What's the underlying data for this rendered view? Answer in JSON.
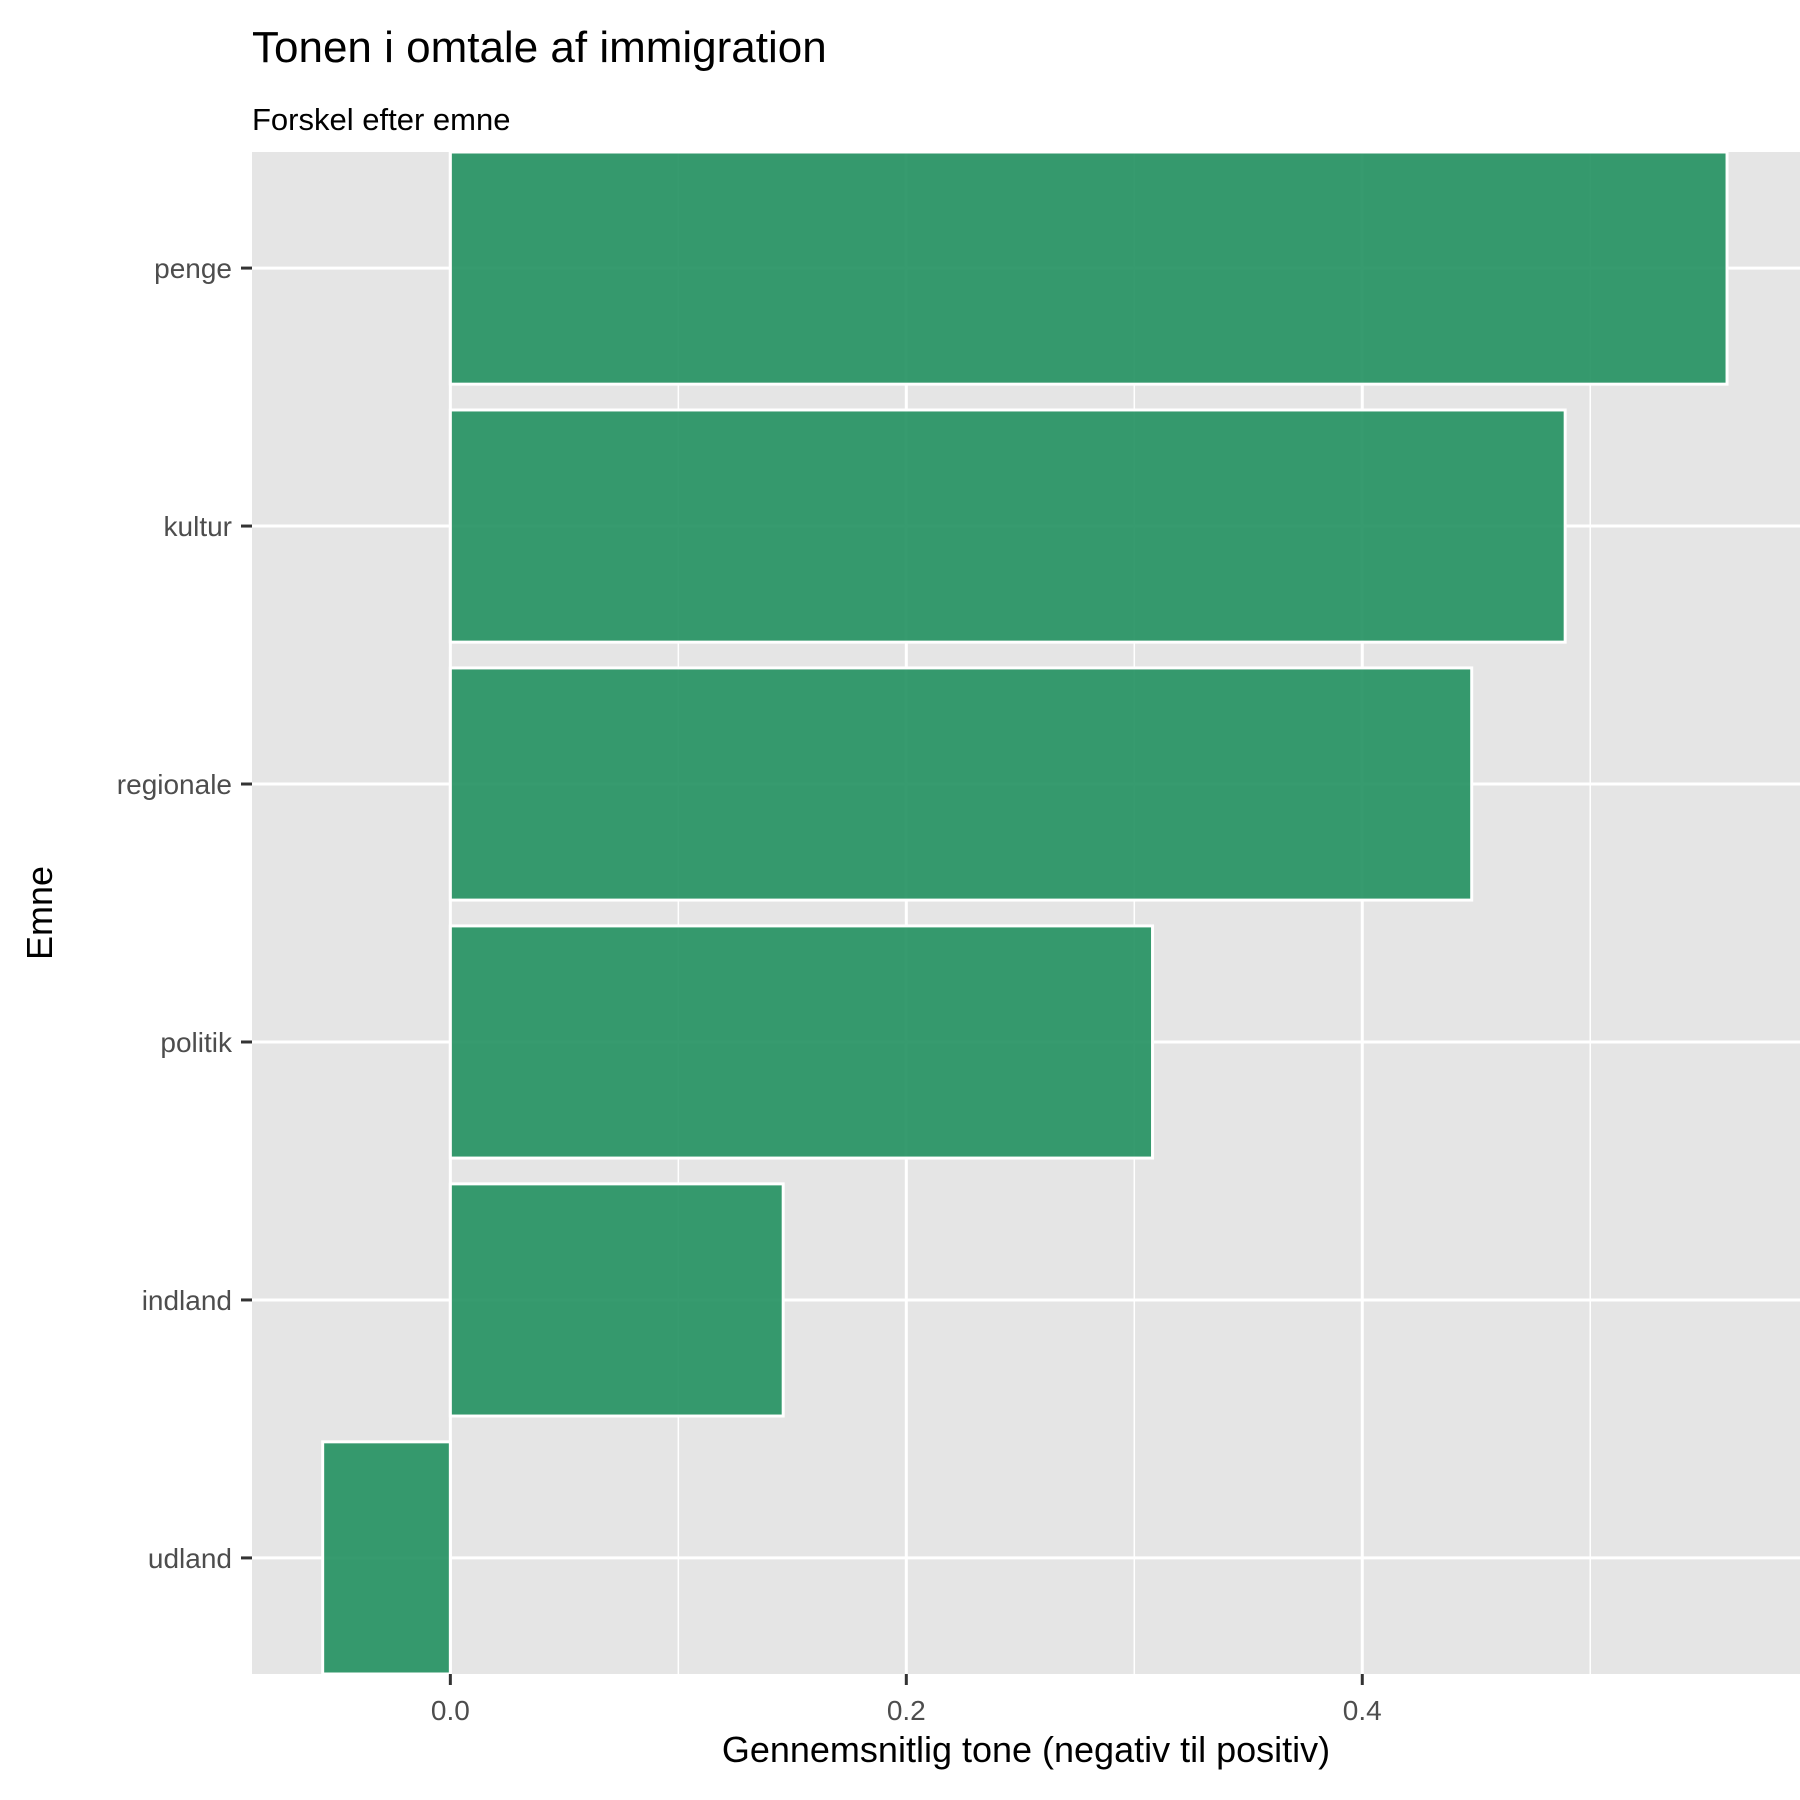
{
  "chart_data": {
    "type": "bar",
    "orientation": "horizontal",
    "title": "Tonen i omtale af immigration",
    "subtitle": "Forskel efter emne",
    "xlabel": "Gennemsnitlig tone (negativ til positiv)",
    "ylabel": "Emne",
    "categories": [
      "penge",
      "kultur",
      "regionale",
      "politik",
      "indland",
      "udland"
    ],
    "values": [
      0.56,
      0.489,
      0.448,
      0.308,
      0.146,
      -0.056
    ],
    "xlim": [
      -0.087,
      0.592
    ],
    "x_ticks": [
      0.0,
      0.2,
      0.4
    ],
    "x_tick_labels": [
      "0.0",
      "0.2",
      "0.4"
    ],
    "grid": true,
    "bar_color": "#21905f",
    "panel_background": "#e5e5e5",
    "gridline_color": "#ffffff"
  }
}
